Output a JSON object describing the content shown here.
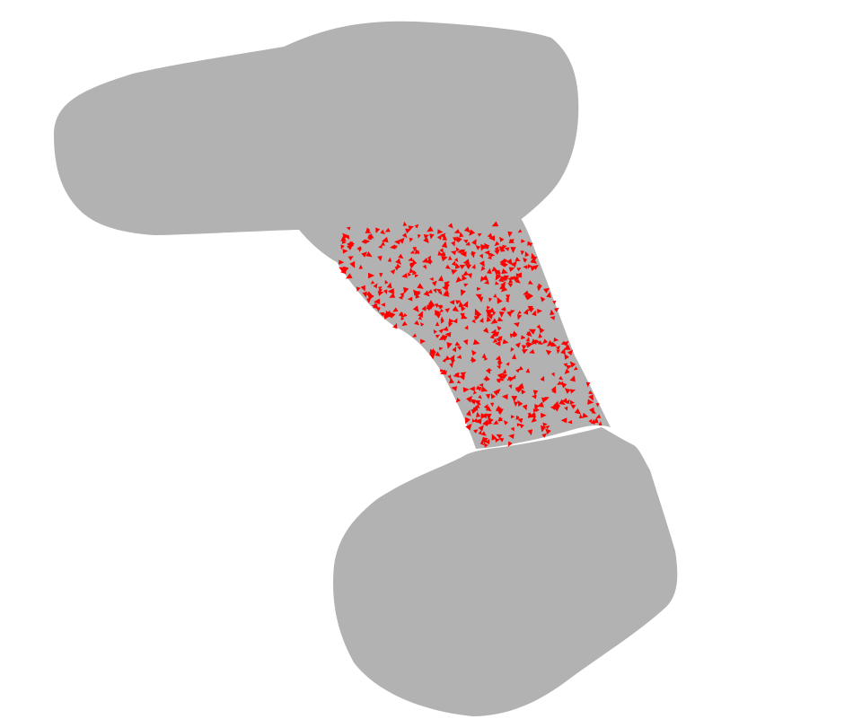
{
  "scene": {
    "background_color": "#ffffff",
    "body_color": "#b2b2b2",
    "marker_color": "#ff0000",
    "marker_shape": "small-triangle",
    "marker_count": 600
  }
}
